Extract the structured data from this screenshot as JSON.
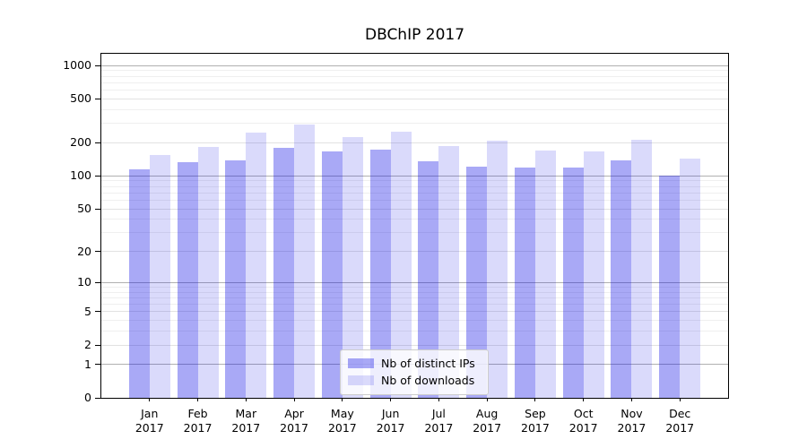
{
  "title": "DBChIP 2017",
  "chart_data": {
    "type": "bar",
    "title": "DBChIP 2017",
    "months": [
      "Jan",
      "Feb",
      "Mar",
      "Apr",
      "May",
      "Jun",
      "Jul",
      "Aug",
      "Sep",
      "Oct",
      "Nov",
      "Dec"
    ],
    "year": "2017",
    "categories": [
      "Jan 2017",
      "Feb 2017",
      "Mar 2017",
      "Apr 2017",
      "May 2017",
      "Jun 2017",
      "Jul 2017",
      "Aug 2017",
      "Sep 2017",
      "Oct 2017",
      "Nov 2017",
      "Dec 2017"
    ],
    "series": [
      {
        "name": "Nb of distinct IPs",
        "color": "rgba(10,10,230,0.35)",
        "values": [
          116,
          134,
          140,
          180,
          168,
          174,
          136,
          122,
          120,
          119,
          140,
          100
        ]
      },
      {
        "name": "Nb of downloads",
        "color": "rgba(10,10,230,0.15)",
        "values": [
          154,
          184,
          247,
          292,
          226,
          254,
          186,
          210,
          170,
          166,
          213,
          145
        ]
      }
    ],
    "yscale": "log1p",
    "ylim": [
      0,
      1282
    ],
    "y_ticks": [
      0,
      1,
      2,
      5,
      10,
      20,
      50,
      100,
      200,
      500,
      1000
    ],
    "grid_on": true,
    "grid": {
      "decade": [
        1,
        10,
        100,
        1000
      ],
      "soft": [
        2,
        5,
        20,
        50,
        200,
        500
      ],
      "minor": [
        3,
        4,
        6,
        7,
        8,
        9,
        30,
        40,
        60,
        70,
        80,
        90,
        300,
        400,
        600,
        700,
        800,
        900
      ]
    },
    "legend_position": "lower center"
  },
  "colors": {
    "grid_decade": "#b0b0b0",
    "grid_soft": "#e2e2e2",
    "grid_minor": "#efefef",
    "axis": "#000000",
    "bar_distinct_ips": "rgba(10,10,230,0.35)",
    "bar_downloads": "rgba(10,10,230,0.15)",
    "legend_border": "#cccccc",
    "legend_bg": "rgba(255,255,255,0.8)"
  }
}
